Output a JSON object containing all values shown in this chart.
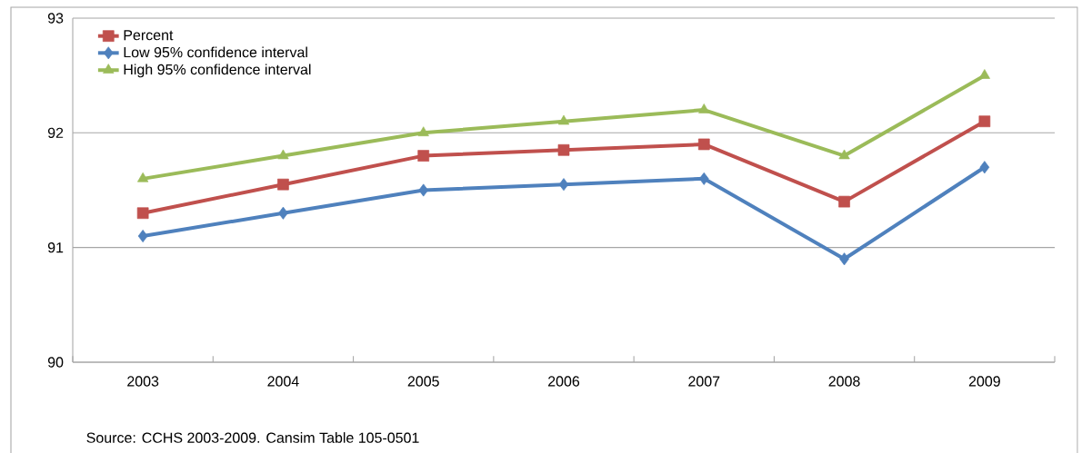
{
  "chart_data": {
    "type": "line",
    "categories": [
      "2003",
      "2004",
      "2005",
      "2006",
      "2007",
      "2008",
      "2009"
    ],
    "series": [
      {
        "name": "Percent",
        "color": "#c0504d",
        "marker": "square",
        "values": [
          91.3,
          91.55,
          91.8,
          91.85,
          91.9,
          91.4,
          92.1
        ]
      },
      {
        "name": "Low 95% confidence interval",
        "color": "#4f81bd",
        "marker": "diamond",
        "values": [
          91.1,
          91.3,
          91.5,
          91.55,
          91.6,
          90.9,
          91.7
        ]
      },
      {
        "name": "High 95% confidence interval",
        "color": "#9bbb59",
        "marker": "triangle",
        "values": [
          91.6,
          91.8,
          92.0,
          92.1,
          92.2,
          91.8,
          92.5
        ]
      }
    ],
    "ylim": [
      90,
      93
    ],
    "yticks": [
      90,
      91,
      92,
      93
    ],
    "grid": "y",
    "legend": "top left",
    "annotations": [
      "Source: CCHS 2003-2009. Cansim Table 105-0501"
    ]
  }
}
